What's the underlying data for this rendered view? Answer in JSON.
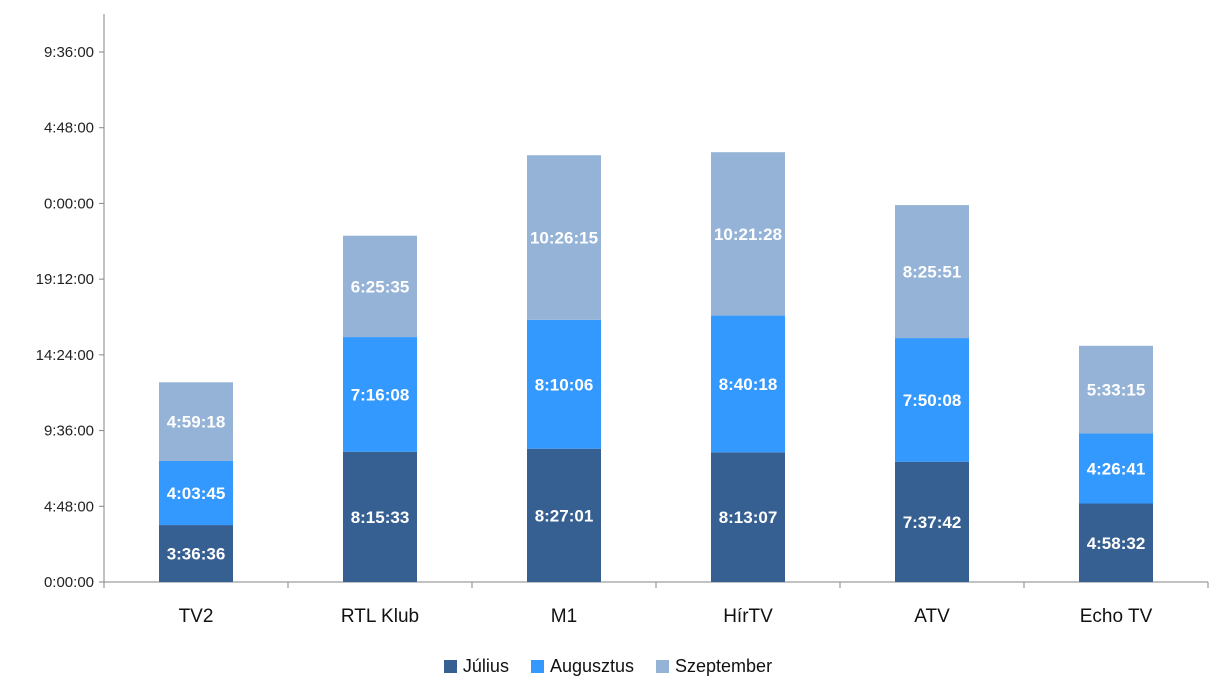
{
  "chart_data": {
    "type": "bar",
    "stacked": true,
    "title": "",
    "xlabel": "",
    "ylabel": "",
    "categories": [
      "TV2",
      "RTL Klub",
      "M1",
      "HírTV",
      "ATV",
      "Echo TV"
    ],
    "y_unit": "hours",
    "ylim": [
      0,
      33.6
    ],
    "y_tick_labels": [
      "0:00:00",
      "4:48:00",
      "9:36:00",
      "14:24:00",
      "19:12:00",
      "0:00:00",
      "4:48:00",
      "9:36:00"
    ],
    "grid": false,
    "legend_position": "bottom",
    "series": [
      {
        "name": "Július",
        "color": "#366092",
        "labels": [
          "3:36:36",
          "8:15:33",
          "8:27:01",
          "8:13:07",
          "7:37:42",
          "4:58:32"
        ]
      },
      {
        "name": "Augusztus",
        "color": "#3399FF",
        "labels": [
          "4:03:45",
          "7:16:08",
          "8:10:06",
          "8:40:18",
          "7:50:08",
          "4:26:41"
        ]
      },
      {
        "name": "Szeptember",
        "color": "#95B3D7",
        "labels": [
          "4:59:18",
          "6:25:35",
          "10:26:15",
          "10:21:28",
          "8:25:51",
          "5:33:15"
        ]
      }
    ]
  }
}
